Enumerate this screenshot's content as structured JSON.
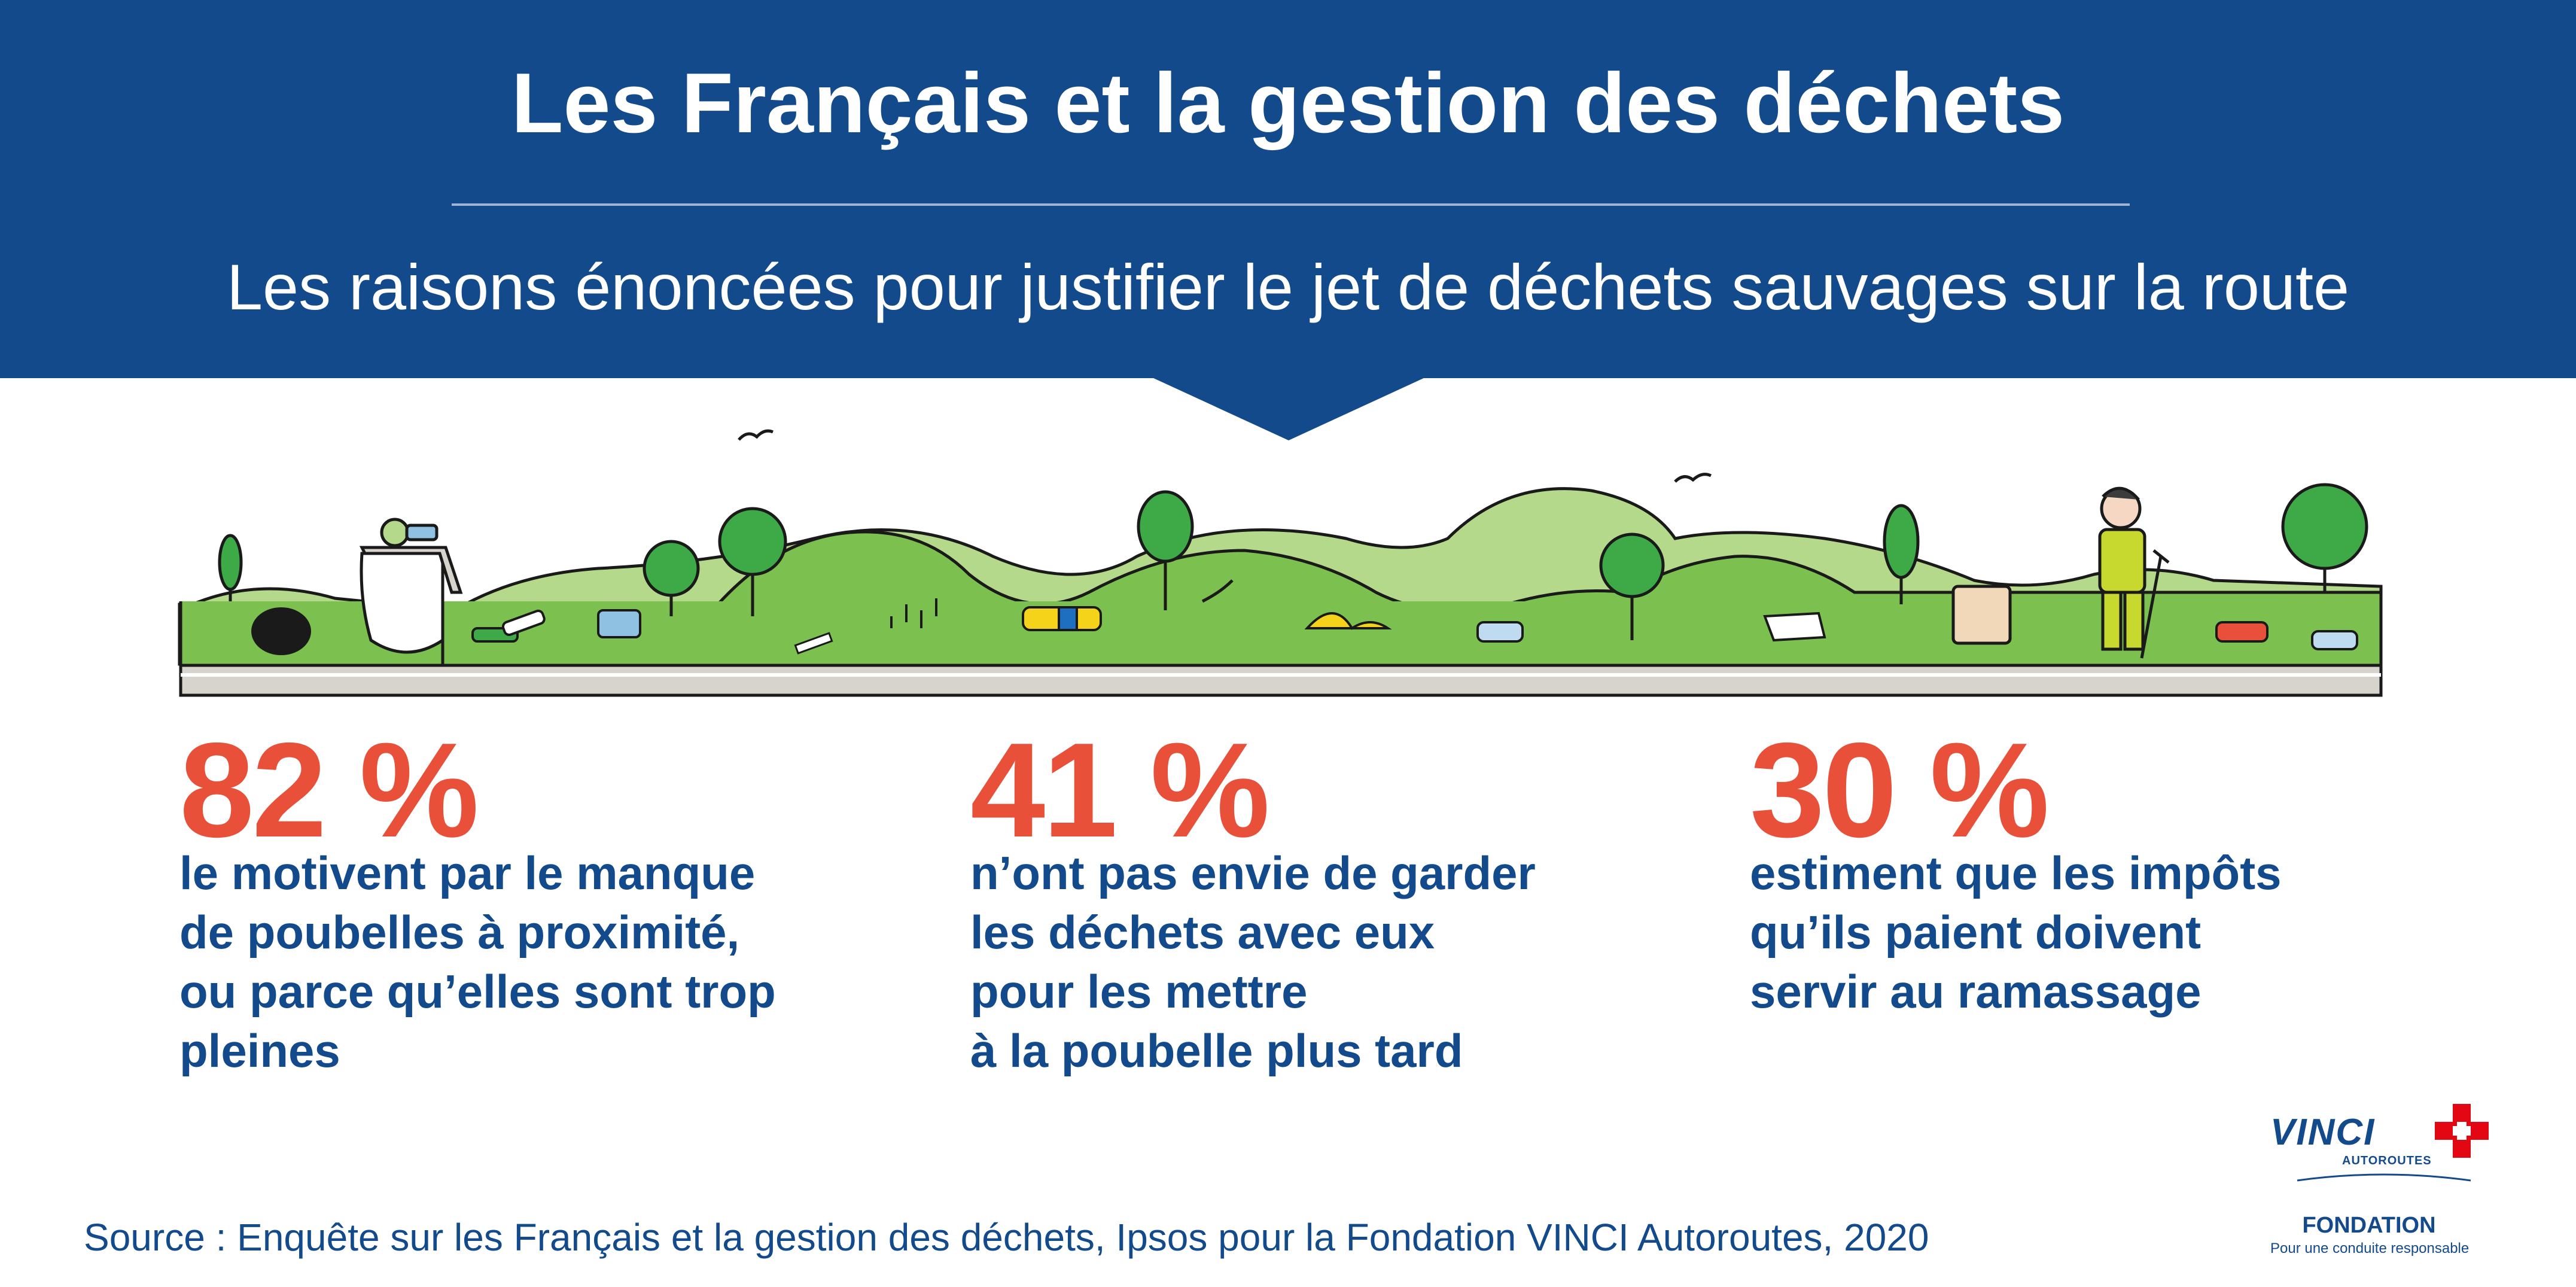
{
  "header": {
    "title": "Les Français et la gestion des déchets",
    "subtitle": "Les raisons énoncées pour justifier le jet de déchets sauvages sur la route"
  },
  "stats": [
    {
      "percent": "82 %",
      "lines": [
        "le motivent par le manque",
        "de poubelles à proximité,",
        "ou parce qu’elles sont trop",
        "pleines"
      ]
    },
    {
      "percent": "41 %",
      "lines": [
        "n’ont pas envie de garder",
        "les déchets avec eux",
        "pour les mettre",
        "à la poubelle plus tard"
      ]
    },
    {
      "percent": "30 %",
      "lines": [
        "estiment que les impôts",
        "qu’ils paient doivent",
        "servir au ramassage"
      ]
    }
  ],
  "source": "Source : Enquête sur les Français et la gestion des déchets, Ipsos pour la Fondation VINCI Autoroutes, 2020",
  "logo": {
    "wordmark": "VINCI",
    "sub": "AUTOROUTES",
    "fondation": "FONDATION",
    "tagline": "Pour une conduite responsable"
  },
  "colors": {
    "header_blue": "#134a8c",
    "accent_red": "#e8503a",
    "grass_green": "#7cc04f",
    "hill_light_green": "#b5d98a",
    "road_grey": "#d7d3cd"
  }
}
